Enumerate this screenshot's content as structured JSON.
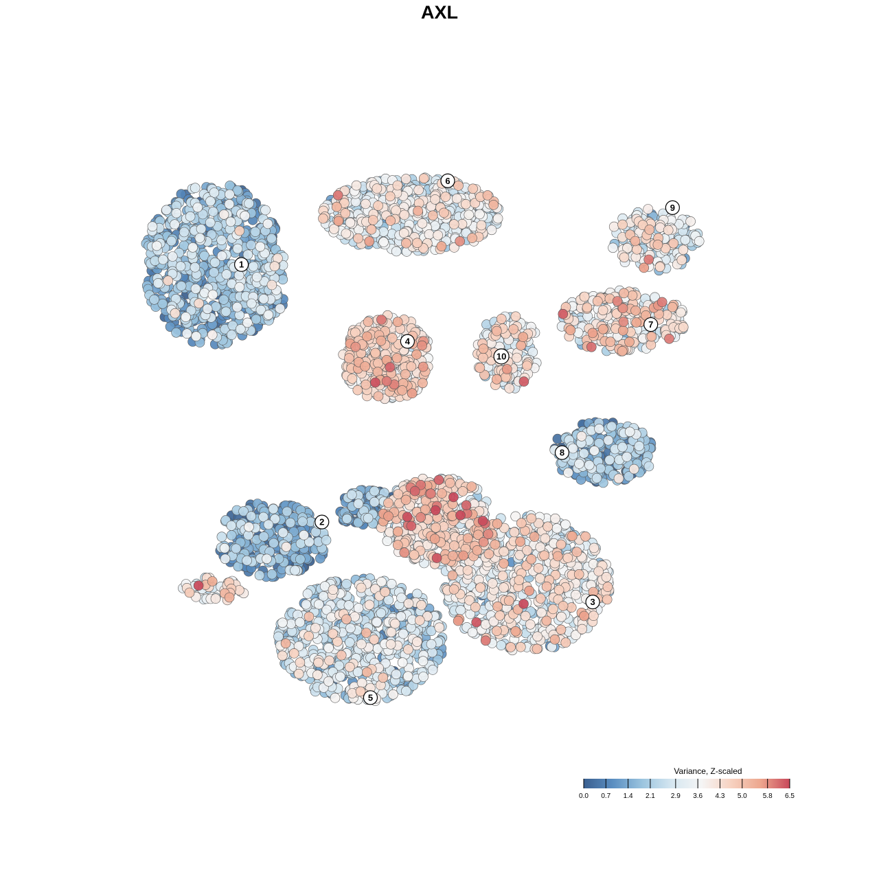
{
  "chart_data": {
    "type": "scatter",
    "title": "AXL",
    "xlabel": "",
    "ylabel": "",
    "xlim": [
      0,
      100
    ],
    "ylim": [
      0,
      100
    ],
    "grid": false,
    "axes_visible": false,
    "point_edge_color": "#555555",
    "color_scale": {
      "title": "Variance, Z-scaled",
      "min": 0.0,
      "max": 6.5,
      "ticks": [
        "0.0",
        "0.7",
        "1.4",
        "2.1",
        "2.9",
        "3.6",
        "4.3",
        "5.0",
        "5.8",
        "6.5"
      ],
      "tick_values": [
        0.0,
        0.7,
        1.4,
        2.1,
        2.9,
        3.6,
        4.3,
        5.0,
        5.8,
        6.5
      ],
      "colors": [
        "#3a5f8f",
        "#5b8fc2",
        "#9cc5df",
        "#d6e7f1",
        "#f5f5f5",
        "#f7d2c1",
        "#eda78f",
        "#c8485a"
      ],
      "placement": "bottom-right"
    },
    "clusters": [
      {
        "label": "1",
        "x": 12,
        "y": 78,
        "rx": 11,
        "ry": 13,
        "mean": 1.8,
        "n": 700
      },
      {
        "label": "2",
        "x": 21,
        "y": 34,
        "rx": 9,
        "ry": 6,
        "mean": 1.3,
        "n": 260
      },
      {
        "label": "3",
        "x": 61,
        "y": 27,
        "rx": 13,
        "ry": 11,
        "mean": 3.4,
        "n": 650
      },
      {
        "label": "4",
        "x": 39,
        "y": 63,
        "rx": 7,
        "ry": 7,
        "mean": 4.0,
        "n": 340
      },
      {
        "label": "5",
        "x": 35,
        "y": 18,
        "rx": 13,
        "ry": 10,
        "mean": 2.6,
        "n": 620
      },
      {
        "label": "6",
        "x": 43,
        "y": 86,
        "rx": 14,
        "ry": 6,
        "mean": 3.2,
        "n": 520
      },
      {
        "label": "7",
        "x": 76,
        "y": 69,
        "rx": 10,
        "ry": 5,
        "mean": 3.8,
        "n": 260
      },
      {
        "label": "8",
        "x": 73,
        "y": 48,
        "rx": 8,
        "ry": 5,
        "mean": 1.6,
        "n": 260
      },
      {
        "label": "9",
        "x": 81,
        "y": 82,
        "rx": 7,
        "ry": 5,
        "mean": 3.4,
        "n": 150
      },
      {
        "label": "10",
        "x": 58,
        "y": 64,
        "rx": 5,
        "ry": 6,
        "mean": 3.5,
        "n": 160
      },
      {
        "label": "",
        "x": 47,
        "y": 37,
        "rx": 9,
        "ry": 7,
        "mean": 4.0,
        "n": 420
      },
      {
        "label": "",
        "x": 12,
        "y": 26,
        "rx": 5,
        "ry": 2,
        "mean": 3.9,
        "n": 45
      },
      {
        "label": "",
        "x": 36,
        "y": 39,
        "rx": 5,
        "ry": 3,
        "mean": 1.4,
        "n": 120
      },
      {
        "label": "",
        "x": 20,
        "y": 72,
        "rx": 3,
        "ry": 3,
        "mean": 1.6,
        "n": 60
      }
    ],
    "label_positions": [
      {
        "label": "1",
        "x": 16.3,
        "y": 78.0
      },
      {
        "label": "2",
        "x": 28.9,
        "y": 36.8
      },
      {
        "label": "3",
        "x": 71.3,
        "y": 24.0
      },
      {
        "label": "4",
        "x": 42.3,
        "y": 65.7
      },
      {
        "label": "5",
        "x": 36.5,
        "y": 8.7
      },
      {
        "label": "6",
        "x": 48.6,
        "y": 91.4
      },
      {
        "label": "7",
        "x": 80.4,
        "y": 68.4
      },
      {
        "label": "8",
        "x": 66.5,
        "y": 47.9
      },
      {
        "label": "9",
        "x": 83.8,
        "y": 87.1
      },
      {
        "label": "10",
        "x": 57.0,
        "y": 63.3
      }
    ]
  }
}
